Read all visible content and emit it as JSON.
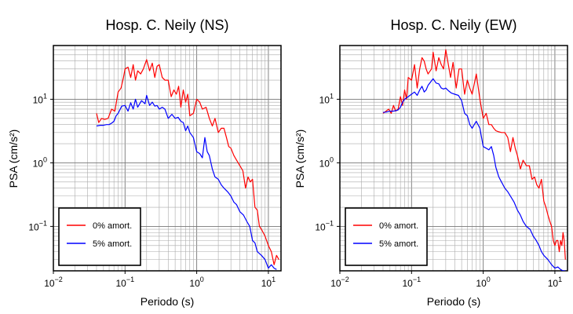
{
  "chart_data": [
    {
      "type": "line",
      "title": "Hosp. C. Neily (NS)",
      "xlabel": "Periodo (s)",
      "ylabel": "PSA (cm/s²)",
      "xscale": "log",
      "yscale": "log",
      "xlim": [
        0.01,
        15
      ],
      "ylim": [
        0.02,
        70
      ],
      "grid": true,
      "legend_position": "bottom-left",
      "x_ticks": [
        {
          "base": "10",
          "exp": "−2"
        },
        {
          "base": "10",
          "exp": "−1"
        },
        {
          "base": "10",
          "exp": "0"
        },
        {
          "base": "10",
          "exp": "1"
        }
      ],
      "y_ticks": [
        {
          "base": "10",
          "exp": "−1"
        },
        {
          "base": "10",
          "exp": "0"
        },
        {
          "base": "10",
          "exp": "1"
        }
      ],
      "series": [
        {
          "name": "0% amort.",
          "color": "#ff0000",
          "x": [
            0.04,
            0.043,
            0.047,
            0.052,
            0.058,
            0.065,
            0.072,
            0.08,
            0.088,
            0.095,
            0.1,
            0.11,
            0.12,
            0.13,
            0.14,
            0.15,
            0.165,
            0.18,
            0.2,
            0.22,
            0.24,
            0.26,
            0.28,
            0.3,
            0.33,
            0.36,
            0.4,
            0.44,
            0.48,
            0.52,
            0.56,
            0.6,
            0.65,
            0.7,
            0.75,
            0.8,
            0.9,
            1.0,
            1.1,
            1.2,
            1.35,
            1.5,
            1.65,
            1.8,
            2.0,
            2.2,
            2.4,
            2.6,
            2.8,
            3.0,
            3.3,
            3.6,
            4.0,
            4.4,
            4.8,
            5.2,
            5.6,
            6.0,
            6.5,
            7.0,
            7.5,
            8.0,
            9.0,
            10.0,
            11.0,
            12.0,
            13.0,
            14.0
          ],
          "y": [
            6,
            4.3,
            5,
            4.8,
            5,
            7,
            6.5,
            13,
            15,
            22,
            30,
            32,
            22,
            35,
            20,
            28,
            25,
            30,
            42,
            28,
            37,
            22,
            33,
            35,
            22,
            20,
            20,
            11,
            14,
            12,
            16,
            7.5,
            14,
            9,
            12,
            5.5,
            6,
            10,
            9,
            7,
            7.5,
            5,
            3.8,
            5,
            3,
            3.5,
            3.5,
            2.5,
            1.8,
            1.7,
            1.3,
            1.1,
            0.9,
            0.75,
            0.4,
            0.6,
            0.5,
            0.55,
            0.2,
            0.18,
            0.1,
            0.09,
            0.07,
            0.05,
            0.04,
            0.025,
            0.035,
            0.03
          ]
        },
        {
          "name": "5% amort.",
          "color": "#0000ff",
          "x": [
            0.04,
            0.045,
            0.05,
            0.055,
            0.06,
            0.065,
            0.07,
            0.075,
            0.08,
            0.09,
            0.1,
            0.11,
            0.12,
            0.13,
            0.14,
            0.15,
            0.17,
            0.19,
            0.2,
            0.22,
            0.24,
            0.26,
            0.28,
            0.3,
            0.33,
            0.36,
            0.4,
            0.45,
            0.5,
            0.55,
            0.6,
            0.65,
            0.7,
            0.75,
            0.8,
            0.9,
            1.0,
            1.1,
            1.2,
            1.3,
            1.4,
            1.5,
            1.65,
            1.8,
            2.0,
            2.2,
            2.4,
            2.7,
            3.0,
            3.3,
            3.6,
            4.0,
            4.5,
            5.0,
            5.5,
            6.0,
            6.5,
            7.0,
            8.0,
            9.0,
            10.0,
            11.0,
            12.0,
            13.0
          ],
          "y": [
            3.8,
            3.9,
            3.9,
            4.0,
            4.0,
            4.2,
            4.5,
            5.5,
            6.0,
            7.8,
            8.0,
            6.5,
            8.8,
            7.0,
            10.0,
            7.5,
            9.5,
            8.5,
            11.5,
            8.0,
            9.0,
            7.8,
            8.0,
            7.0,
            7.5,
            7.0,
            5.0,
            5.8,
            5.0,
            5.2,
            4.5,
            4.3,
            3.2,
            3.8,
            3.0,
            2.5,
            1.5,
            1.4,
            1.2,
            2.5,
            1.5,
            1.3,
            0.8,
            0.6,
            0.55,
            0.45,
            0.4,
            0.35,
            0.3,
            0.24,
            0.22,
            0.17,
            0.15,
            0.12,
            0.1,
            0.06,
            0.055,
            0.04,
            0.035,
            0.03,
            0.022,
            0.025,
            0.022,
            0.021
          ]
        }
      ]
    },
    {
      "type": "line",
      "title": "Hosp. C. Neily (EW)",
      "xlabel": "Periodo (s)",
      "ylabel": "PSA (cm/s²)",
      "xscale": "log",
      "yscale": "log",
      "xlim": [
        0.01,
        15
      ],
      "ylim": [
        0.02,
        70
      ],
      "grid": true,
      "legend_position": "bottom-left",
      "x_ticks": [
        {
          "base": "10",
          "exp": "−2"
        },
        {
          "base": "10",
          "exp": "−1"
        },
        {
          "base": "10",
          "exp": "0"
        },
        {
          "base": "10",
          "exp": "1"
        }
      ],
      "y_ticks": [
        {
          "base": "10",
          "exp": "−1"
        },
        {
          "base": "10",
          "exp": "0"
        },
        {
          "base": "10",
          "exp": "1"
        }
      ],
      "series": [
        {
          "name": "0% amort.",
          "color": "#ff0000",
          "x": [
            0.04,
            0.044,
            0.048,
            0.052,
            0.056,
            0.06,
            0.065,
            0.07,
            0.075,
            0.08,
            0.085,
            0.09,
            0.1,
            0.11,
            0.12,
            0.13,
            0.14,
            0.15,
            0.16,
            0.17,
            0.19,
            0.2,
            0.22,
            0.24,
            0.26,
            0.28,
            0.3,
            0.32,
            0.35,
            0.38,
            0.42,
            0.46,
            0.5,
            0.55,
            0.6,
            0.65,
            0.7,
            0.8,
            0.9,
            1.0,
            1.1,
            1.2,
            1.3,
            1.4,
            1.5,
            1.6,
            1.8,
            2.0,
            2.2,
            2.4,
            2.6,
            2.8,
            3.0,
            3.3,
            3.6,
            4.0,
            4.4,
            4.8,
            5.2,
            5.6,
            6.0,
            6.5,
            7.0,
            7.5,
            8.0,
            8.5,
            9.0,
            9.5,
            10.0,
            10.5,
            11.0,
            11.5,
            12.0,
            12.5,
            13.0,
            13.5,
            14.0
          ],
          "y": [
            6,
            6.5,
            7,
            6,
            8,
            6.5,
            7,
            11,
            8,
            14,
            10,
            22,
            20,
            35,
            15,
            30,
            45,
            40,
            30,
            25,
            30,
            55,
            28,
            45,
            35,
            30,
            60,
            40,
            22,
            38,
            15,
            30,
            30,
            12,
            20,
            15,
            12,
            25,
            10,
            5,
            6,
            4,
            4,
            3.5,
            3.2,
            3.1,
            3,
            3,
            2.5,
            1.5,
            2.5,
            1.7,
            1.3,
            0.8,
            1.1,
            0.9,
            0.9,
            0.55,
            0.6,
            0.45,
            0.4,
            0.55,
            0.25,
            0.2,
            0.15,
            0.12,
            0.1,
            0.06,
            0.05,
            0.06,
            0.06,
            0.04,
            0.06,
            0.05,
            0.08,
            0.06,
            0.03
          ]
        },
        {
          "name": "5% amort.",
          "color": "#0000ff",
          "x": [
            0.04,
            0.045,
            0.05,
            0.055,
            0.06,
            0.065,
            0.07,
            0.075,
            0.08,
            0.09,
            0.1,
            0.11,
            0.12,
            0.13,
            0.14,
            0.15,
            0.16,
            0.17,
            0.18,
            0.2,
            0.22,
            0.24,
            0.26,
            0.28,
            0.3,
            0.33,
            0.36,
            0.4,
            0.45,
            0.5,
            0.55,
            0.6,
            0.65,
            0.7,
            0.75,
            0.8,
            0.9,
            1.0,
            1.1,
            1.2,
            1.3,
            1.4,
            1.5,
            1.65,
            1.8,
            2.0,
            2.2,
            2.4,
            2.7,
            3.0,
            3.3,
            3.6,
            4.0,
            4.5,
            5.0,
            5.5,
            6.0,
            6.5,
            7.0,
            8.0,
            9.0,
            10.0,
            11.0,
            12.0,
            13.0,
            14.0
          ],
          "y": [
            6.2,
            6.3,
            6.5,
            6.5,
            6.6,
            6.8,
            7.5,
            9.0,
            10.0,
            11.0,
            12.0,
            13.0,
            11.5,
            14.0,
            16.0,
            13.0,
            14.0,
            16.5,
            18.0,
            21.0,
            18.0,
            17.5,
            15.0,
            14.5,
            15.0,
            13.5,
            12.5,
            12.0,
            11.5,
            9.5,
            6.0,
            5.5,
            4.0,
            3.5,
            4.0,
            4.5,
            3.5,
            1.8,
            1.7,
            1.6,
            1.8,
            1.3,
            0.85,
            0.6,
            0.5,
            0.4,
            0.35,
            0.3,
            0.24,
            0.18,
            0.15,
            0.12,
            0.1,
            0.09,
            0.07,
            0.06,
            0.05,
            0.04,
            0.035,
            0.03,
            0.025,
            0.022,
            0.023,
            0.021,
            0.02,
            0.02
          ]
        }
      ]
    }
  ]
}
